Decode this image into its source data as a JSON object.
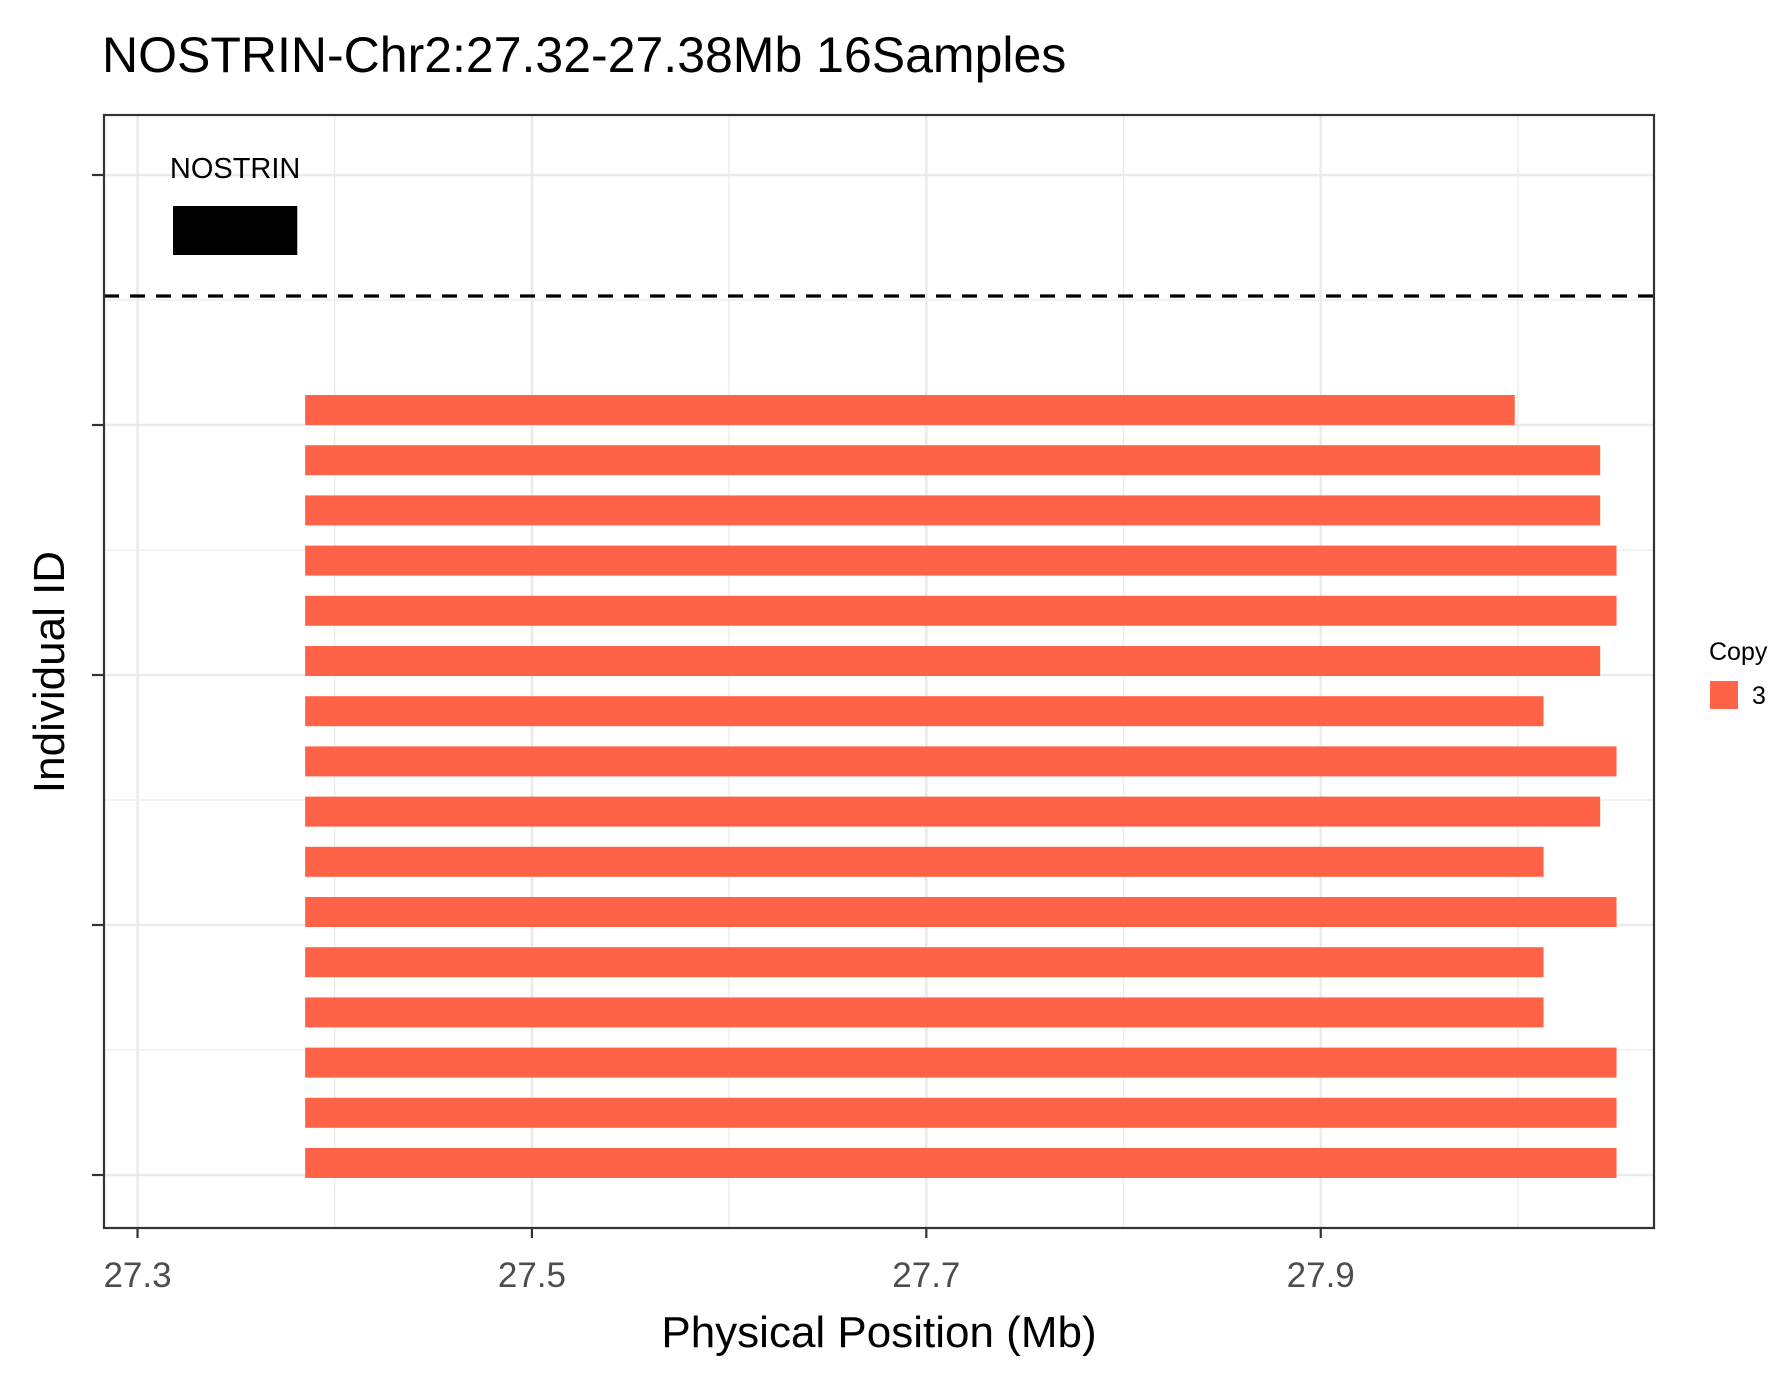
{
  "chart_data": {
    "type": "bar",
    "orientation": "horizontal-segments",
    "title": "NOSTRIN-Chr2:27.32-27.38Mb 16Samples",
    "xlabel": "Physical Position (Mb)",
    "ylabel": "Individual ID",
    "xlim": [
      27.283,
      28.069
    ],
    "x_ticks": [
      27.3,
      27.5,
      27.7,
      27.9
    ],
    "x_tick_labels": [
      "27.3",
      "27.5",
      "27.7",
      "27.9"
    ],
    "grid": true,
    "gene": {
      "name": "NOSTRIN",
      "start": 27.318,
      "end": 27.381
    },
    "legend": {
      "title": "Copy",
      "position": "right",
      "entries": [
        {
          "label": "3",
          "color": "#FF6347"
        }
      ]
    },
    "segments": [
      {
        "start": 27.385,
        "end": 27.9984,
        "copy": 3
      },
      {
        "start": 27.385,
        "end": 28.0417,
        "copy": 3
      },
      {
        "start": 27.385,
        "end": 28.0417,
        "copy": 3
      },
      {
        "start": 27.385,
        "end": 28.05,
        "copy": 3
      },
      {
        "start": 27.385,
        "end": 28.05,
        "copy": 3
      },
      {
        "start": 27.385,
        "end": 28.0417,
        "copy": 3
      },
      {
        "start": 27.385,
        "end": 28.013,
        "copy": 3
      },
      {
        "start": 27.385,
        "end": 28.05,
        "copy": 3
      },
      {
        "start": 27.385,
        "end": 28.0417,
        "copy": 3
      },
      {
        "start": 27.385,
        "end": 28.013,
        "copy": 3
      },
      {
        "start": 27.385,
        "end": 28.05,
        "copy": 3
      },
      {
        "start": 27.385,
        "end": 28.013,
        "copy": 3
      },
      {
        "start": 27.385,
        "end": 28.013,
        "copy": 3
      },
      {
        "start": 27.385,
        "end": 28.05,
        "copy": 3
      },
      {
        "start": 27.385,
        "end": 28.05,
        "copy": 3
      },
      {
        "start": 27.385,
        "end": 28.05,
        "copy": 3
      }
    ],
    "colors": {
      "segment": "#FF6347",
      "gene": "#000000",
      "grid": "#ebebeb",
      "panel_border": "#333333"
    }
  }
}
